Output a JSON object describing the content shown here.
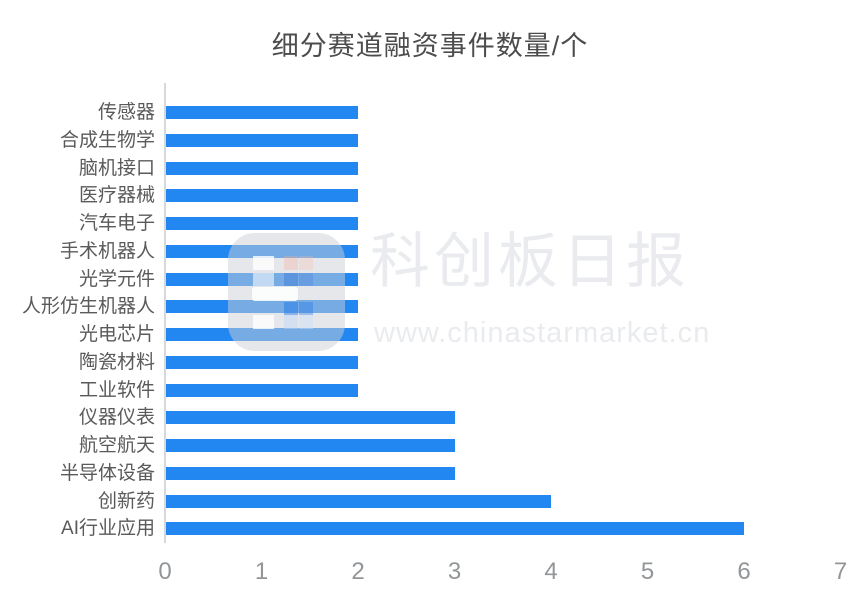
{
  "chart_data": {
    "type": "bar",
    "orientation": "horizontal",
    "title": "细分赛道融资事件数量/个",
    "categories": [
      "传感器",
      "合成生物学",
      "脑机接口",
      "医疗器械",
      "汽车电子",
      "手术机器人",
      "光学元件",
      "人形仿生机器人",
      "光电芯片",
      "陶瓷材料",
      "工业软件",
      "仪器仪表",
      "航空航天",
      "半导体设备",
      "创新药",
      "AI行业应用"
    ],
    "values": [
      2,
      2,
      2,
      2,
      2,
      2,
      2,
      2,
      2,
      2,
      2,
      3,
      3,
      3,
      4,
      6
    ],
    "xlabel": "",
    "ylabel": "",
    "xlim": [
      0,
      7
    ],
    "x_ticks": [
      0,
      1,
      2,
      3,
      4,
      5,
      6,
      7
    ],
    "grid": false,
    "legend": "none",
    "bar_color": "#2287f1"
  },
  "watermark": {
    "brand": "科创板日报",
    "url": "www.chinastarmarket.cn"
  },
  "colors": {
    "bar": "#2287f1",
    "title_text": "#4c4c4c",
    "y_label_text": "#5a5a5a",
    "x_tick_text": "#929699",
    "axis_line": "#d6d9dc",
    "watermark_text": "#e9ebee"
  }
}
